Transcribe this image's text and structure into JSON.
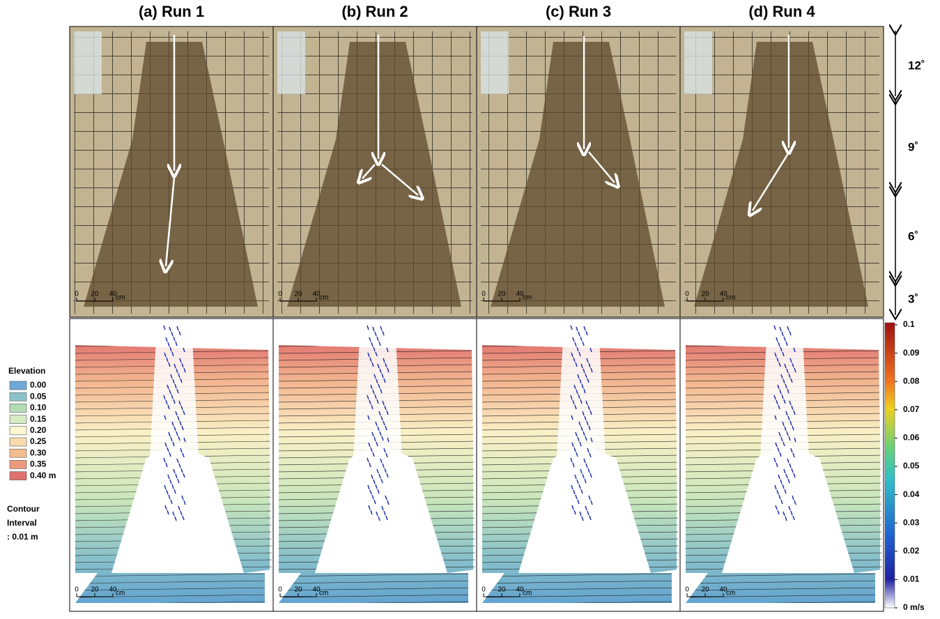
{
  "panels": [
    {
      "title": "(a) Run 1"
    },
    {
      "title": "(b) Run 2"
    },
    {
      "title": "(c) Run 3"
    },
    {
      "title": "(d) Run 4"
    }
  ],
  "slopes": [
    "12˚",
    "9˚",
    "6˚",
    "3˚"
  ],
  "elevation_legend": {
    "title": "Elevation",
    "items": [
      {
        "label": "0.00",
        "color": "#6fa8d6"
      },
      {
        "label": "0.05",
        "color": "#8cc3c9"
      },
      {
        "label": "0.10",
        "color": "#b4ddb6"
      },
      {
        "label": "0.15",
        "color": "#d6ecc4"
      },
      {
        "label": "0.20",
        "color": "#fbf7d0"
      },
      {
        "label": "0.25",
        "color": "#f8dcad"
      },
      {
        "label": "0.30",
        "color": "#f4bd8f"
      },
      {
        "label": "0.35",
        "color": "#ec9a7e"
      },
      {
        "label": "0.40 m",
        "color": "#e0706d"
      }
    ],
    "contour": [
      "Contour",
      "Interval",
      ": 0.01 m"
    ]
  },
  "colorbar": {
    "labels": [
      "0.1",
      "0.09",
      "0.08",
      "0.07",
      "0.06",
      "0.05",
      "0.04",
      "0.03",
      "0.02",
      "0.01",
      "0 m/s"
    ]
  },
  "scale_bar": {
    "labels": [
      "0",
      "20",
      "40",
      "cm"
    ]
  }
}
